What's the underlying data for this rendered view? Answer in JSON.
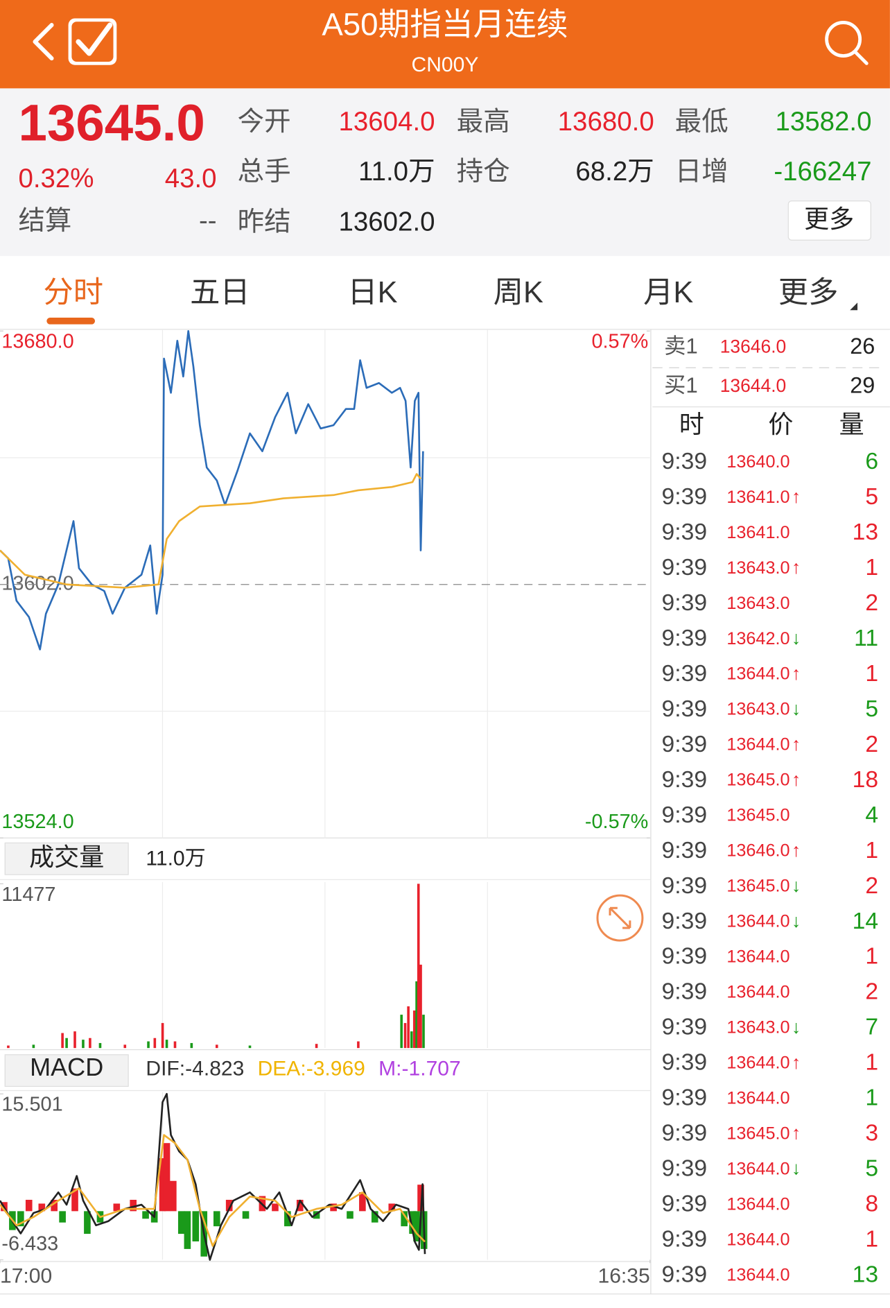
{
  "header": {
    "title": "A50期指当月连续",
    "subtitle": "CN00Y"
  },
  "quote": {
    "last": "13645.0",
    "pct": "0.32%",
    "change": "43.0",
    "settle_label": "结算",
    "settle_value": "--",
    "more": "更多",
    "fields": [
      {
        "label": "今开",
        "value": "13604.0",
        "color": "#e8212c"
      },
      {
        "label": "最高",
        "value": "13680.0",
        "color": "#e8212c"
      },
      {
        "label": "最低",
        "value": "13582.0",
        "color": "#1a9a1a"
      },
      {
        "label": "总手",
        "value": "11.0万",
        "color": "#222222"
      },
      {
        "label": "持仓",
        "value": "68.2万",
        "color": "#222222"
      },
      {
        "label": "日增",
        "value": "-166247",
        "color": "#1a9a1a"
      },
      {
        "label": "昨结",
        "value": "13602.0",
        "color": "#222222"
      }
    ]
  },
  "tabs": {
    "items": [
      "分时",
      "五日",
      "日K",
      "周K",
      "月K",
      "更多"
    ],
    "active": 0
  },
  "chart_data": [
    {
      "type": "line",
      "xlim": [
        0,
        1415
      ],
      "ylim": [
        13524,
        13680
      ],
      "yticks": [
        {
          "value": 13680,
          "label": "13680.0"
        },
        {
          "value": 13602,
          "label": "13602.0"
        },
        {
          "value": 13524,
          "label": "13524.0"
        }
      ],
      "y2lim": [
        -0.57,
        0.57
      ],
      "y2ticks": [
        {
          "value": 0.57,
          "label": "0.57%"
        },
        {
          "value": -0.57,
          "label": "-0.57%"
        }
      ],
      "series": [
        {
          "color": "#2b6cb8",
          "x": [
            0,
            18,
            36,
            63,
            87,
            100,
            127,
            160,
            172,
            200,
            227,
            245,
            272,
            308,
            327,
            341,
            354,
            357,
            372,
            386,
            399,
            410,
            421,
            435,
            450,
            472,
            490,
            517,
            544,
            571,
            599,
            626,
            644,
            671,
            698,
            726,
            753,
            771,
            784,
            798,
            825,
            853,
            871,
            883,
            894,
            903,
            911,
            916,
            921
          ],
          "values": [
            13612.5,
            13610,
            13597,
            13592,
            13582,
            13593,
            13602,
            13621.5,
            13607,
            13602,
            13600,
            13593,
            13601,
            13605,
            13614,
            13593,
            13605,
            13671.5,
            13661,
            13677,
            13666,
            13680,
            13669,
            13651,
            13638,
            13634,
            13626.5,
            13637,
            13648.5,
            13643,
            13653.5,
            13661,
            13648.5,
            13657.5,
            13650,
            13651,
            13656,
            13656,
            13671,
            13662.5,
            13664,
            13661,
            13662.5,
            13658.5,
            13638,
            13658.5,
            13661,
            13612.5,
            13643
          ]
        },
        {
          "color": "#f0b030",
          "x": [
            0,
            54,
            145,
            272,
            345,
            363,
            390,
            435,
            544,
            617,
            726,
            780,
            853,
            898,
            907,
            916
          ],
          "values": [
            13612.5,
            13605,
            13602,
            13601,
            13602,
            13616,
            13621.5,
            13626,
            13627,
            13628.5,
            13629.5,
            13631,
            13632,
            13633.5,
            13636,
            13634.5
          ]
        }
      ]
    },
    {
      "type": "bar",
      "title": "成交量",
      "total": "11.0万",
      "xlim": [
        0,
        1415
      ],
      "ylim": [
        0,
        11477
      ],
      "yticks": [
        11477
      ],
      "x": [
        18,
        73,
        136,
        145,
        163,
        181,
        196,
        218,
        272,
        323,
        337,
        354,
        363,
        381,
        417,
        472,
        544,
        689,
        780,
        874,
        882,
        889,
        896,
        902,
        907,
        911,
        916,
        922
      ],
      "values": [
        175,
        233,
        1049,
        699,
        1165,
        583,
        699,
        350,
        233,
        466,
        699,
        1748,
        583,
        466,
        350,
        233,
        175,
        291,
        466,
        2330,
        1748,
        2913,
        1165,
        2622,
        4661,
        11477,
        5826,
        2330
      ],
      "colors": [
        "#e8212c",
        "#1a9a1a",
        "#e8212c",
        "#1a9a1a",
        "#e8212c",
        "#1a9a1a",
        "#e8212c",
        "#1a9a1a",
        "#e8212c",
        "#1a9a1a",
        "#e8212c",
        "#e8212c",
        "#1a9a1a",
        "#e8212c",
        "#1a9a1a",
        "#e8212c",
        "#1a9a1a",
        "#e8212c",
        "#e8212c",
        "#1a9a1a",
        "#e8212c",
        "#e8212c",
        "#1a9a1a",
        "#e8212c",
        "#1a9a1a",
        "#e8212c",
        "#e8212c",
        "#1a9a1a"
      ]
    },
    {
      "type": "line",
      "title": "MACD",
      "labels": [
        "DIF:-4.823",
        "DEA:-3.969",
        "M:-1.707"
      ],
      "label_colors": [
        "#333333",
        "#f0b400",
        "#b040e0"
      ],
      "xlim": [
        0,
        1415
      ],
      "xticks": [
        {
          "value": 0,
          "label": "17:00"
        },
        {
          "value": 1415,
          "label": "16:35"
        }
      ],
      "ylim": [
        -6.433,
        15.501
      ],
      "yticks": [
        15.501,
        -6.433
      ],
      "histogram": {
        "up_color": "#e8212c",
        "down_color": "#1a9a1a",
        "x": [
          9,
          27,
          45,
          63,
          91,
          118,
          136,
          163,
          190,
          218,
          254,
          290,
          317,
          336,
          354,
          363,
          377,
          395,
          408,
          426,
          444,
          472,
          499,
          535,
          571,
          599,
          626,
          653,
          689,
          726,
          762,
          789,
          816,
          853,
          880,
          898,
          907,
          916,
          923
        ],
        "values": [
          1.2,
          -2.5,
          -2,
          1.5,
          1,
          1.5,
          -1.5,
          3,
          -3,
          -1.5,
          1,
          1.5,
          -1,
          -1.5,
          7,
          9,
          4,
          -3,
          -5,
          -4,
          -6,
          -2,
          1.5,
          -1,
          2,
          1,
          -2,
          1.5,
          -1,
          1,
          -1,
          2.5,
          -1.5,
          1,
          -2,
          -3,
          -4,
          3.5,
          -5
        ]
      },
      "series": [
        {
          "color": "#222222",
          "x": [
            0,
            27,
            45,
            73,
            100,
            127,
            145,
            167,
            181,
            209,
            236,
            272,
            308,
            336,
            354,
            363,
            372,
            390,
            408,
            426,
            444,
            457,
            481,
            508,
            544,
            581,
            608,
            635,
            653,
            680,
            717,
            744,
            784,
            807,
            834,
            862,
            889,
            903,
            912,
            920,
            925
          ],
          "values": [
            1.39,
            -1.32,
            -2.95,
            -0.24,
            0.3,
            2.48,
            0.85,
            4.65,
            1.39,
            -1.87,
            -1.32,
            0.3,
            0.85,
            -0.78,
            14.42,
            15.501,
            10.07,
            7.9,
            6.82,
            3.56,
            -2.95,
            -6.433,
            -1.87,
            1.39,
            2.48,
            0.3,
            2.48,
            -1.87,
            1.39,
            -0.78,
            0.85,
            0.3,
            4.1,
            0.3,
            -1.32,
            0.85,
            0.3,
            -4.04,
            -5.12,
            3.56,
            -5.67
          ]
        },
        {
          "color": "#f0b030",
          "x": [
            0,
            36,
            73,
            127,
            172,
            218,
            272,
            336,
            357,
            381,
            408,
            435,
            463,
            499,
            544,
            599,
            635,
            689,
            744,
            789,
            834,
            871,
            907,
            925
          ],
          "values": [
            0.85,
            -1.87,
            -0.78,
            1.39,
            3.02,
            -0.78,
            0.3,
            0.3,
            10.07,
            8.99,
            6.82,
            0.3,
            -4.59,
            -0.78,
            1.93,
            1.39,
            -0.78,
            0.3,
            0.85,
            2.48,
            -0.24,
            0.3,
            -2.95,
            -4.04
          ]
        }
      ]
    }
  ],
  "order_book": [
    {
      "label": "卖1",
      "price": "13646.0",
      "volume": "26"
    },
    {
      "label": "买1",
      "price": "13644.0",
      "volume": "29"
    }
  ],
  "trades": {
    "headers": [
      "时",
      "价",
      "量"
    ],
    "rows": [
      {
        "time": "9:39",
        "price": "13640.0",
        "volume": "6",
        "volume_color": "#1a9a1a"
      },
      {
        "time": "9:39",
        "price": "13641.0",
        "arrow": "↑",
        "arrow_color": "#e8212c",
        "volume": "5",
        "volume_color": "#e8212c"
      },
      {
        "time": "9:39",
        "price": "13641.0",
        "volume": "13",
        "volume_color": "#e8212c"
      },
      {
        "time": "9:39",
        "price": "13643.0",
        "arrow": "↑",
        "arrow_color": "#e8212c",
        "volume": "1",
        "volume_color": "#e8212c"
      },
      {
        "time": "9:39",
        "price": "13643.0",
        "volume": "2",
        "volume_color": "#e8212c"
      },
      {
        "time": "9:39",
        "price": "13642.0",
        "arrow": "↓",
        "arrow_color": "#1a9a1a",
        "volume": "11",
        "volume_color": "#1a9a1a"
      },
      {
        "time": "9:39",
        "price": "13644.0",
        "arrow": "↑",
        "arrow_color": "#e8212c",
        "volume": "1",
        "volume_color": "#e8212c"
      },
      {
        "time": "9:39",
        "price": "13643.0",
        "arrow": "↓",
        "arrow_color": "#1a9a1a",
        "volume": "5",
        "volume_color": "#1a9a1a"
      },
      {
        "time": "9:39",
        "price": "13644.0",
        "arrow": "↑",
        "arrow_color": "#e8212c",
        "volume": "2",
        "volume_color": "#e8212c"
      },
      {
        "time": "9:39",
        "price": "13645.0",
        "arrow": "↑",
        "arrow_color": "#e8212c",
        "volume": "18",
        "volume_color": "#e8212c"
      },
      {
        "time": "9:39",
        "price": "13645.0",
        "volume": "4",
        "volume_color": "#1a9a1a"
      },
      {
        "time": "9:39",
        "price": "13646.0",
        "arrow": "↑",
        "arrow_color": "#e8212c",
        "volume": "1",
        "volume_color": "#e8212c"
      },
      {
        "time": "9:39",
        "price": "13645.0",
        "arrow": "↓",
        "arrow_color": "#1a9a1a",
        "volume": "2",
        "volume_color": "#e8212c"
      },
      {
        "time": "9:39",
        "price": "13644.0",
        "arrow": "↓",
        "arrow_color": "#1a9a1a",
        "volume": "14",
        "volume_color": "#1a9a1a"
      },
      {
        "time": "9:39",
        "price": "13644.0",
        "volume": "1",
        "volume_color": "#e8212c"
      },
      {
        "time": "9:39",
        "price": "13644.0",
        "volume": "2",
        "volume_color": "#e8212c"
      },
      {
        "time": "9:39",
        "price": "13643.0",
        "arrow": "↓",
        "arrow_color": "#1a9a1a",
        "volume": "7",
        "volume_color": "#1a9a1a"
      },
      {
        "time": "9:39",
        "price": "13644.0",
        "arrow": "↑",
        "arrow_color": "#e8212c",
        "volume": "1",
        "volume_color": "#e8212c"
      },
      {
        "time": "9:39",
        "price": "13644.0",
        "volume": "1",
        "volume_color": "#1a9a1a"
      },
      {
        "time": "9:39",
        "price": "13645.0",
        "arrow": "↑",
        "arrow_color": "#e8212c",
        "volume": "3",
        "volume_color": "#e8212c"
      },
      {
        "time": "9:39",
        "price": "13644.0",
        "arrow": "↓",
        "arrow_color": "#1a9a1a",
        "volume": "5",
        "volume_color": "#1a9a1a"
      },
      {
        "time": "9:39",
        "price": "13644.0",
        "volume": "8",
        "volume_color": "#e8212c"
      },
      {
        "time": "9:39",
        "price": "13644.0",
        "volume": "1",
        "volume_color": "#e8212c"
      },
      {
        "time": "9:39",
        "price": "13644.0",
        "volume": "13",
        "volume_color": "#1a9a1a"
      }
    ]
  }
}
